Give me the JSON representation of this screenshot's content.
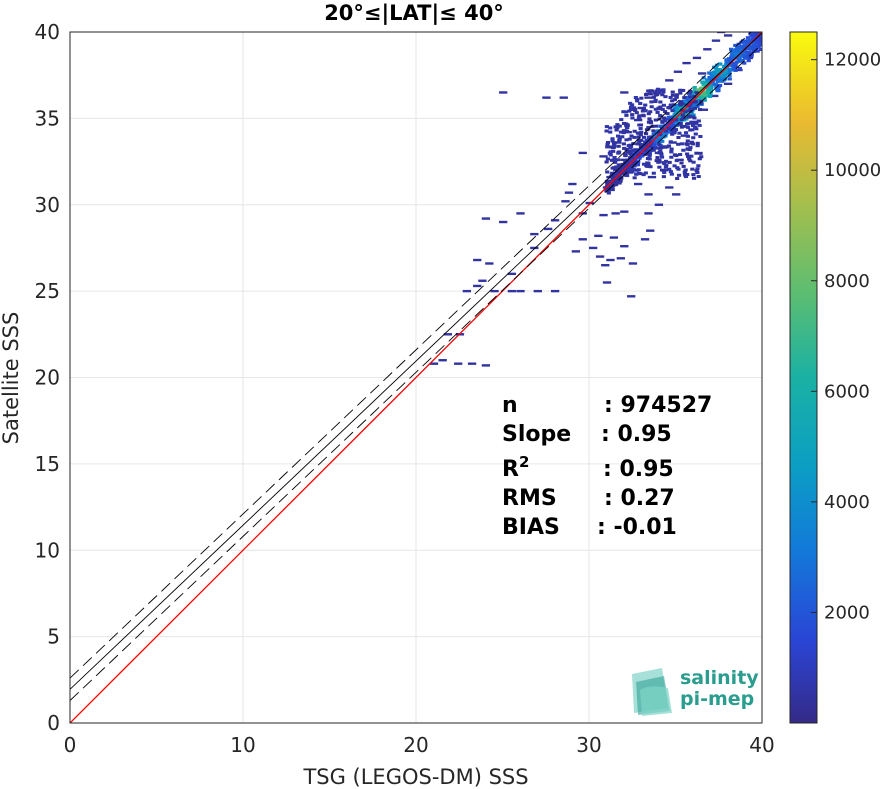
{
  "chart_data": {
    "type": "heatmap",
    "title": "20°≤|LAT|≤ 40°",
    "xlabel": "TSG (LEGOS-DM) SSS",
    "ylabel": "Satellite SSS",
    "xlim": [
      0,
      40
    ],
    "ylim": [
      0,
      40
    ],
    "xticks": [
      "0",
      "10",
      "20",
      "30",
      "40"
    ],
    "yticks": [
      "0",
      "5",
      "10",
      "15",
      "20",
      "25",
      "30",
      "35",
      "40"
    ],
    "grid": true,
    "colorbar": {
      "range": [
        0,
        12500
      ],
      "ticks": [
        "2000",
        "4000",
        "6000",
        "8000",
        "10000",
        "12000"
      ],
      "colormap": "parula"
    },
    "lines": [
      {
        "kind": "identity",
        "color": "#ff0000",
        "style": "solid",
        "slope": 1.0,
        "intercept": 0.0
      },
      {
        "kind": "regression",
        "color": "#000000",
        "style": "solid",
        "slope": 0.95,
        "intercept": 1.95
      },
      {
        "kind": "regression-plus",
        "color": "#000000",
        "style": "dashed",
        "slope": 0.95,
        "intercept": 2.6
      },
      {
        "kind": "regression-minus",
        "color": "#000000",
        "style": "dashed",
        "slope": 0.95,
        "intercept": 1.3
      }
    ],
    "stats": [
      {
        "name": "n",
        "value": ": 974527"
      },
      {
        "name": "Slope",
        "value": ": 0.95"
      },
      {
        "name": "R2",
        "value": ": 0.95"
      },
      {
        "name": "RMS",
        "value": ": 0.27"
      },
      {
        "name": "BIAS",
        "value": ": -0.01"
      }
    ],
    "density_cores": [
      {
        "x": 35.5,
        "y": 35.3,
        "count": 6000
      },
      {
        "x": 36.5,
        "y": 36.6,
        "count": 7500
      },
      {
        "x": 37.6,
        "y": 37.8,
        "count": 4500
      },
      {
        "x": 34.2,
        "y": 34.0,
        "count": 3000
      },
      {
        "x": 38.6,
        "y": 38.7,
        "count": 2500
      },
      {
        "x": 39.3,
        "y": 39.3,
        "count": 1800
      },
      {
        "x": 33.0,
        "y": 32.8,
        "count": 1200
      }
    ],
    "bins": [
      [
        25,
        36.5
      ],
      [
        27.5,
        36.2
      ],
      [
        32,
        36.5
      ],
      [
        33.5,
        36.6
      ],
      [
        28.5,
        36.2
      ],
      [
        26,
        29.5
      ],
      [
        24,
        29.2
      ],
      [
        25,
        29.0
      ],
      [
        23.5,
        26.8
      ],
      [
        24.2,
        26.6
      ],
      [
        23.8,
        25.6
      ],
      [
        22.9,
        25.0
      ],
      [
        23.5,
        25.3
      ],
      [
        24.5,
        25.0
      ],
      [
        25.5,
        25.0
      ],
      [
        26,
        25.0
      ],
      [
        27.0,
        25.0
      ],
      [
        28.0,
        25.0
      ],
      [
        25.5,
        26.0
      ],
      [
        26.8,
        27.5
      ],
      [
        26.8,
        28.3
      ],
      [
        27.6,
        28.6
      ],
      [
        28.0,
        29.1
      ],
      [
        22.5,
        22.5
      ],
      [
        21.8,
        22.5
      ],
      [
        21.0,
        20.8
      ],
      [
        21.5,
        21.0
      ],
      [
        22.4,
        20.8
      ],
      [
        23.2,
        20.8
      ],
      [
        24.0,
        20.7
      ],
      [
        30.0,
        30.1
      ],
      [
        29.6,
        29.5
      ],
      [
        30.8,
        29.4
      ],
      [
        31.5,
        29.5
      ],
      [
        32.0,
        29.6
      ],
      [
        33.4,
        29.5
      ],
      [
        30.5,
        28.2
      ],
      [
        31.4,
        28.1
      ],
      [
        32.0,
        27.6
      ],
      [
        33.2,
        28.0
      ],
      [
        33.5,
        28.5
      ],
      [
        30.6,
        27.0
      ],
      [
        31.2,
        26.8
      ],
      [
        31.8,
        26.9
      ],
      [
        32.5,
        26.6
      ],
      [
        30.9,
        26.5
      ],
      [
        32.4,
        24.7
      ],
      [
        31.0,
        25.5
      ],
      [
        30.2,
        27.5
      ],
      [
        29.6,
        28.0
      ],
      [
        29.2,
        27.3
      ],
      [
        28.6,
        30.2
      ],
      [
        28.8,
        30.7
      ],
      [
        29.0,
        31.2
      ],
      [
        31.2,
        31.6
      ],
      [
        31.8,
        32.3
      ],
      [
        29.6,
        33.0
      ],
      [
        30.8,
        32.8
      ],
      [
        31.6,
        33.6
      ],
      [
        32.4,
        33.1
      ],
      [
        33.0,
        33.5
      ],
      [
        32.2,
        34.2
      ],
      [
        32.8,
        34.9
      ],
      [
        33.0,
        35.6
      ],
      [
        33.4,
        36.2
      ],
      [
        32.5,
        35.5
      ],
      [
        34.0,
        36.6
      ],
      [
        34.6,
        37.2
      ],
      [
        35.1,
        37.7
      ],
      [
        35.6,
        38.2
      ],
      [
        36.2,
        38.5
      ],
      [
        36.8,
        39.0
      ],
      [
        37.3,
        39.5
      ],
      [
        38.0,
        39.8
      ],
      [
        37.6,
        40.0
      ],
      [
        36.5,
        37.6
      ],
      [
        34.0,
        33.0
      ],
      [
        34.8,
        33.6
      ],
      [
        35.5,
        34.0
      ],
      [
        36.0,
        34.8
      ],
      [
        35.2,
        32.6
      ],
      [
        36.6,
        35.5
      ],
      [
        37.2,
        36.3
      ],
      [
        38.0,
        37.0
      ],
      [
        38.6,
        37.8
      ],
      [
        39.2,
        38.5
      ],
      [
        33.6,
        31.6
      ],
      [
        34.3,
        32.0
      ],
      [
        32.8,
        31.2
      ],
      [
        33.4,
        30.6
      ],
      [
        34.6,
        31.0
      ],
      [
        32.0,
        32.6
      ],
      [
        31.0,
        31.0
      ],
      [
        31.4,
        31.8
      ],
      [
        35.0,
        30.6
      ],
      [
        34.0,
        30.0
      ]
    ]
  },
  "logo": {
    "line1": "salinity",
    "line2": "pi-mep"
  }
}
